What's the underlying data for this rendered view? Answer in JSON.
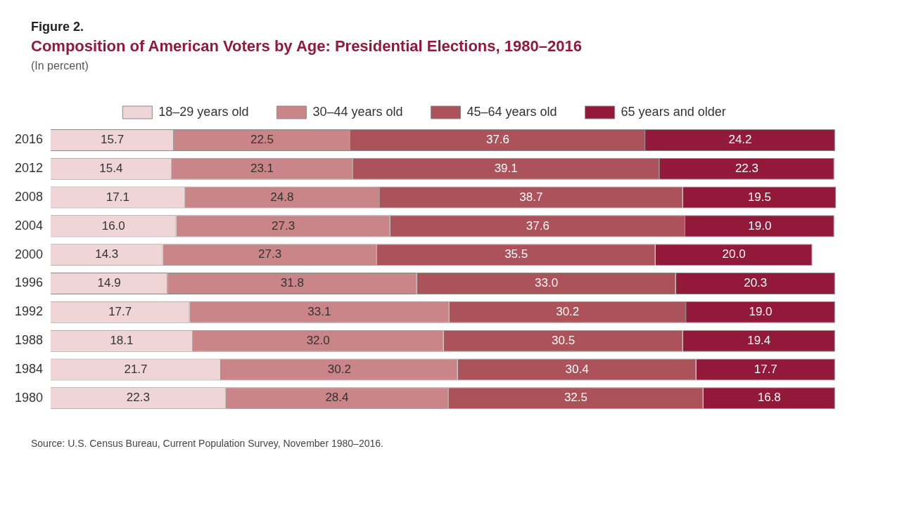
{
  "chart_data": {
    "type": "bar",
    "orientation": "horizontal",
    "stacked": true,
    "title": "Composition of American Voters by Age: Presidential Elections, 1980–2016",
    "subtitle": "(In percent)",
    "annotations": [
      "Figure 2.",
      "Source: U.S. Census Bureau, Current Population Survey, November 1980–2016."
    ],
    "categories": [
      "2016",
      "2012",
      "2008",
      "2004",
      "2000",
      "1996",
      "1992",
      "1988",
      "1984",
      "1980"
    ],
    "series": [
      {
        "name": "18–29 years old",
        "color": "#efd5d6",
        "values": [
          15.7,
          15.4,
          17.1,
          16.0,
          14.3,
          14.9,
          17.7,
          18.1,
          21.7,
          22.3
        ],
        "value_labels": [
          "15.7",
          "15.4",
          "17.1",
          "16.0",
          "14.3",
          "14.9",
          "17.7",
          "18.1",
          "21.7",
          "22.3"
        ]
      },
      {
        "name": "30–44 years old",
        "color": "#c98587",
        "values": [
          22.5,
          23.1,
          24.8,
          27.3,
          27.3,
          31.8,
          33.1,
          32.0,
          30.2,
          28.4
        ],
        "value_labels": [
          "22.5",
          "23.1",
          "24.8",
          "27.3",
          "27.3",
          "31.8",
          "33.1",
          "32.0",
          "30.2",
          "28.4"
        ]
      },
      {
        "name": "45–64 years old",
        "color": "#ab525a",
        "values": [
          37.6,
          39.1,
          38.7,
          37.6,
          35.5,
          33.0,
          30.2,
          30.5,
          30.4,
          32.5
        ],
        "value_labels": [
          "37.6",
          "39.1",
          "38.7",
          "37.6",
          "35.5",
          "33.0",
          "30.2",
          "30.5",
          "30.4",
          "32.5"
        ]
      },
      {
        "name": "65 years and older",
        "color": "#93193a",
        "values": [
          24.2,
          22.3,
          19.5,
          19.0,
          20.0,
          20.3,
          19.0,
          19.4,
          17.7,
          16.8
        ],
        "value_labels": [
          "24.2",
          "22.3",
          "19.5",
          "19.0",
          "20.0",
          "20.3",
          "19.0",
          "19.4",
          "17.7",
          "16.8"
        ]
      }
    ],
    "legend": "top",
    "tick_labels": "y"
  }
}
